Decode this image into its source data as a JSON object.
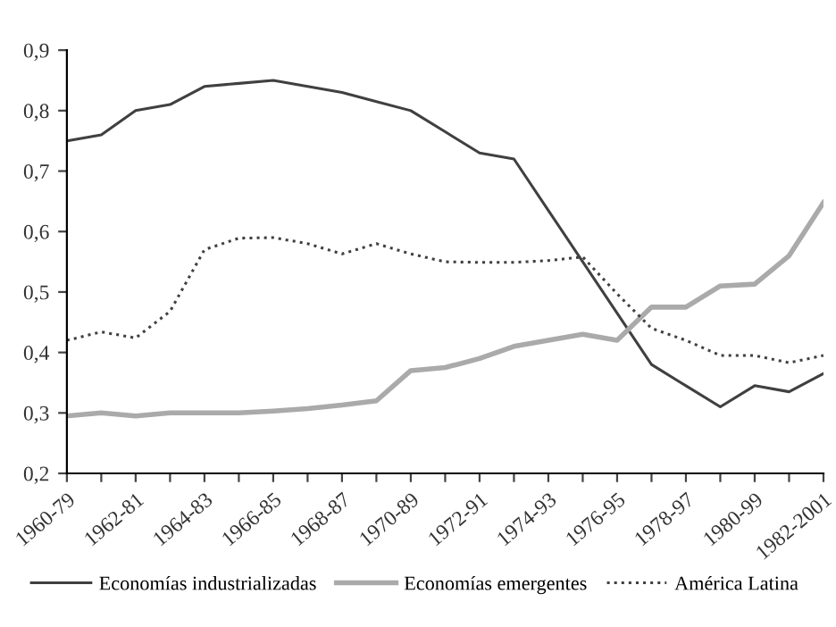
{
  "chart_data": {
    "type": "line",
    "categories": [
      "1960-79",
      null,
      "1962-81",
      null,
      "1964-83",
      null,
      "1966-85",
      null,
      "1968-87",
      null,
      "1970-89",
      null,
      "1972-91",
      null,
      "1974-93",
      null,
      "1976-95",
      null,
      "1978-97",
      null,
      "1980-99",
      null,
      "1982-2001"
    ],
    "series": [
      {
        "name": "Economías industrializadas",
        "color": "#404040",
        "line_style": "solid",
        "values": [
          0.75,
          0.76,
          0.8,
          0.81,
          0.84,
          0.845,
          0.85,
          0.84,
          0.83,
          0.815,
          0.8,
          0.765,
          0.73,
          0.72,
          0.635,
          0.55,
          0.465,
          0.38,
          0.345,
          0.31,
          0.345,
          0.335,
          0.365
        ]
      },
      {
        "name": "Economías emergentes",
        "color": "#aaaaaa",
        "line_style": "solid",
        "values": [
          0.295,
          0.3,
          0.295,
          0.3,
          0.3,
          0.3,
          0.303,
          0.307,
          0.313,
          0.32,
          0.37,
          0.375,
          0.39,
          0.41,
          0.42,
          0.43,
          0.42,
          0.475,
          0.475,
          0.51,
          0.513,
          0.56,
          0.648
        ]
      },
      {
        "name": "América Latina",
        "color": "#404040",
        "line_style": "dotted",
        "values": [
          0.42,
          0.434,
          0.424,
          0.468,
          0.57,
          0.589,
          0.59,
          0.58,
          0.563,
          0.58,
          0.563,
          0.55,
          0.549,
          0.549,
          0.552,
          0.558,
          0.497,
          0.44,
          0.42,
          0.395,
          0.395,
          0.383,
          0.395
        ]
      }
    ],
    "ylim": [
      0.2,
      0.9
    ],
    "yticks": [
      {
        "value": 0.2,
        "label": "0,2"
      },
      {
        "value": 0.3,
        "label": "0,3"
      },
      {
        "value": 0.4,
        "label": "0,4"
      },
      {
        "value": 0.5,
        "label": "0,5"
      },
      {
        "value": 0.6,
        "label": "0,6"
      },
      {
        "value": 0.7,
        "label": "0,7"
      },
      {
        "value": 0.8,
        "label": "0,8"
      },
      {
        "value": 0.9,
        "label": "0,9"
      }
    ],
    "grid": false,
    "legend": "bottom",
    "marker": "none"
  }
}
